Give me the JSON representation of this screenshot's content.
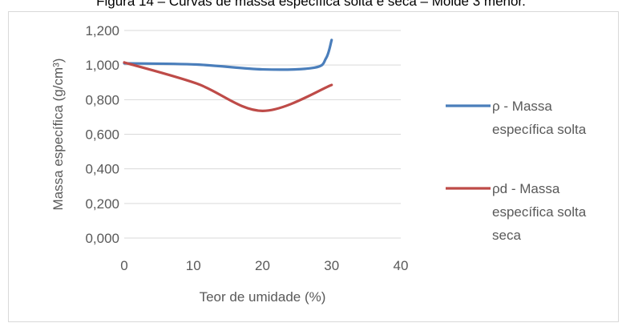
{
  "caption": "Figura 14 – Curvas de massa específica solta e seca – Molde 3 menor.",
  "chart_data": {
    "type": "line",
    "title": "",
    "xlabel": "Teor de umidade (%)",
    "ylabel": "Massa específica (g/cm³)",
    "xlim": [
      0,
      40
    ],
    "ylim": [
      0,
      1.2
    ],
    "x_ticks": [
      0,
      10,
      20,
      30,
      40
    ],
    "x_tick_labels": [
      "0",
      "10",
      "20",
      "30",
      "40"
    ],
    "y_ticks": [
      0,
      0.2,
      0.4,
      0.6,
      0.8,
      1.0,
      1.2
    ],
    "y_tick_labels": [
      "0,000",
      "0,200",
      "0,400",
      "0,600",
      "0,800",
      "1,000",
      "1,200"
    ],
    "grid": "horizontal",
    "legend_position": "right",
    "series": [
      {
        "name": "ρ - Massa específica solta",
        "legend_lines": [
          "ρ - Massa",
          "específica solta"
        ],
        "color": "#4a7ebb",
        "x": [
          0,
          10.5,
          20,
          27.5,
          29.2,
          30
        ],
        "y": [
          1.01,
          1.003,
          0.975,
          0.985,
          1.04,
          1.145
        ]
      },
      {
        "name": "ρd - Massa específica solta seca",
        "legend_lines": [
          "ρd - Massa",
          "específica solta",
          "seca"
        ],
        "color": "#be4b48",
        "x": [
          0,
          10.5,
          20,
          30
        ],
        "y": [
          1.015,
          0.893,
          0.735,
          0.885
        ]
      }
    ]
  }
}
